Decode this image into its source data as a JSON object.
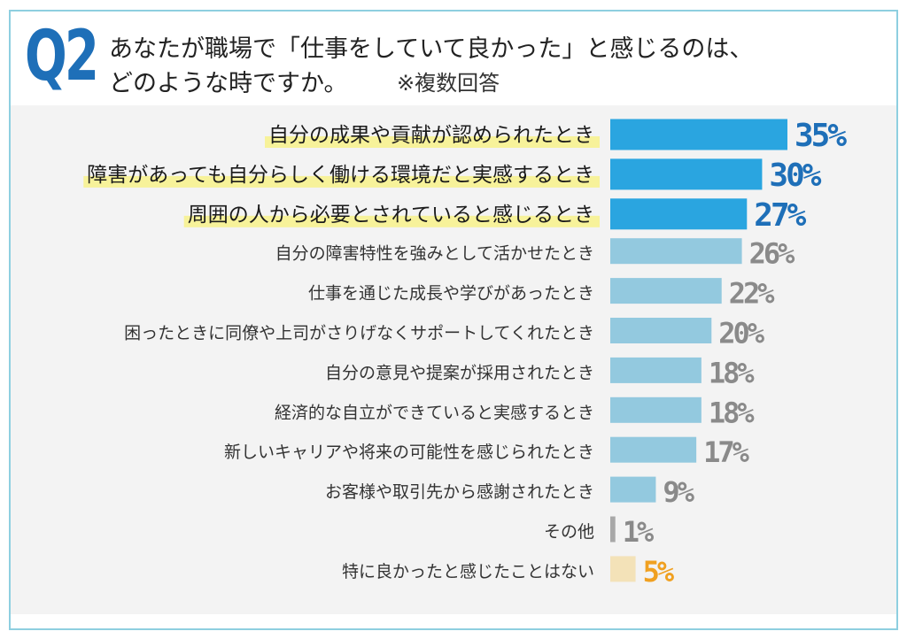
{
  "question": {
    "number": "Q2",
    "line1": "あなたが職場で「仕事をしていて良かった」と感じるのは、",
    "line2": "どのような時ですか。",
    "note": "※複数回答"
  },
  "colors": {
    "top": "#2aa5e0",
    "normal": "#93c9df",
    "other": "#a8a8a8",
    "none": "#f3e2b8",
    "highlight": "#f7f29a",
    "pct_top": "#1e6fb8",
    "pct_normal": "#8a8a8a",
    "pct_none": "#f0a020"
  },
  "chart_data": {
    "type": "bar",
    "orientation": "horizontal",
    "categories": [
      "自分の成果や貢献が認められたとき",
      "障害があっても自分らしく働ける環境だと実感するとき",
      "周囲の人から必要とされていると感じるとき",
      "自分の障害特性を強みとして活かせたとき",
      "仕事を通じた成長や学びがあったとき",
      "困ったときに同僚や上司がさりげなくサポートしてくれたとき",
      "自分の意見や提案が採用されたとき",
      "経済的な自立ができていると実感するとき",
      "新しいキャリアや将来の可能性を感じられたとき",
      "お客様や取引先から感謝されたとき",
      "その他",
      "特に良かったと感じたことはない"
    ],
    "values": [
      35,
      30,
      27,
      26,
      22,
      20,
      18,
      18,
      17,
      9,
      1,
      5
    ],
    "labels": [
      "35%",
      "30%",
      "27%",
      "26%",
      "22%",
      "20%",
      "18%",
      "18%",
      "17%",
      "9%",
      "1%",
      "5%"
    ],
    "groups": [
      "top",
      "top",
      "top",
      "normal",
      "normal",
      "normal",
      "normal",
      "normal",
      "normal",
      "normal",
      "other",
      "none"
    ],
    "unit": "%",
    "xlim": [
      0,
      35
    ]
  }
}
